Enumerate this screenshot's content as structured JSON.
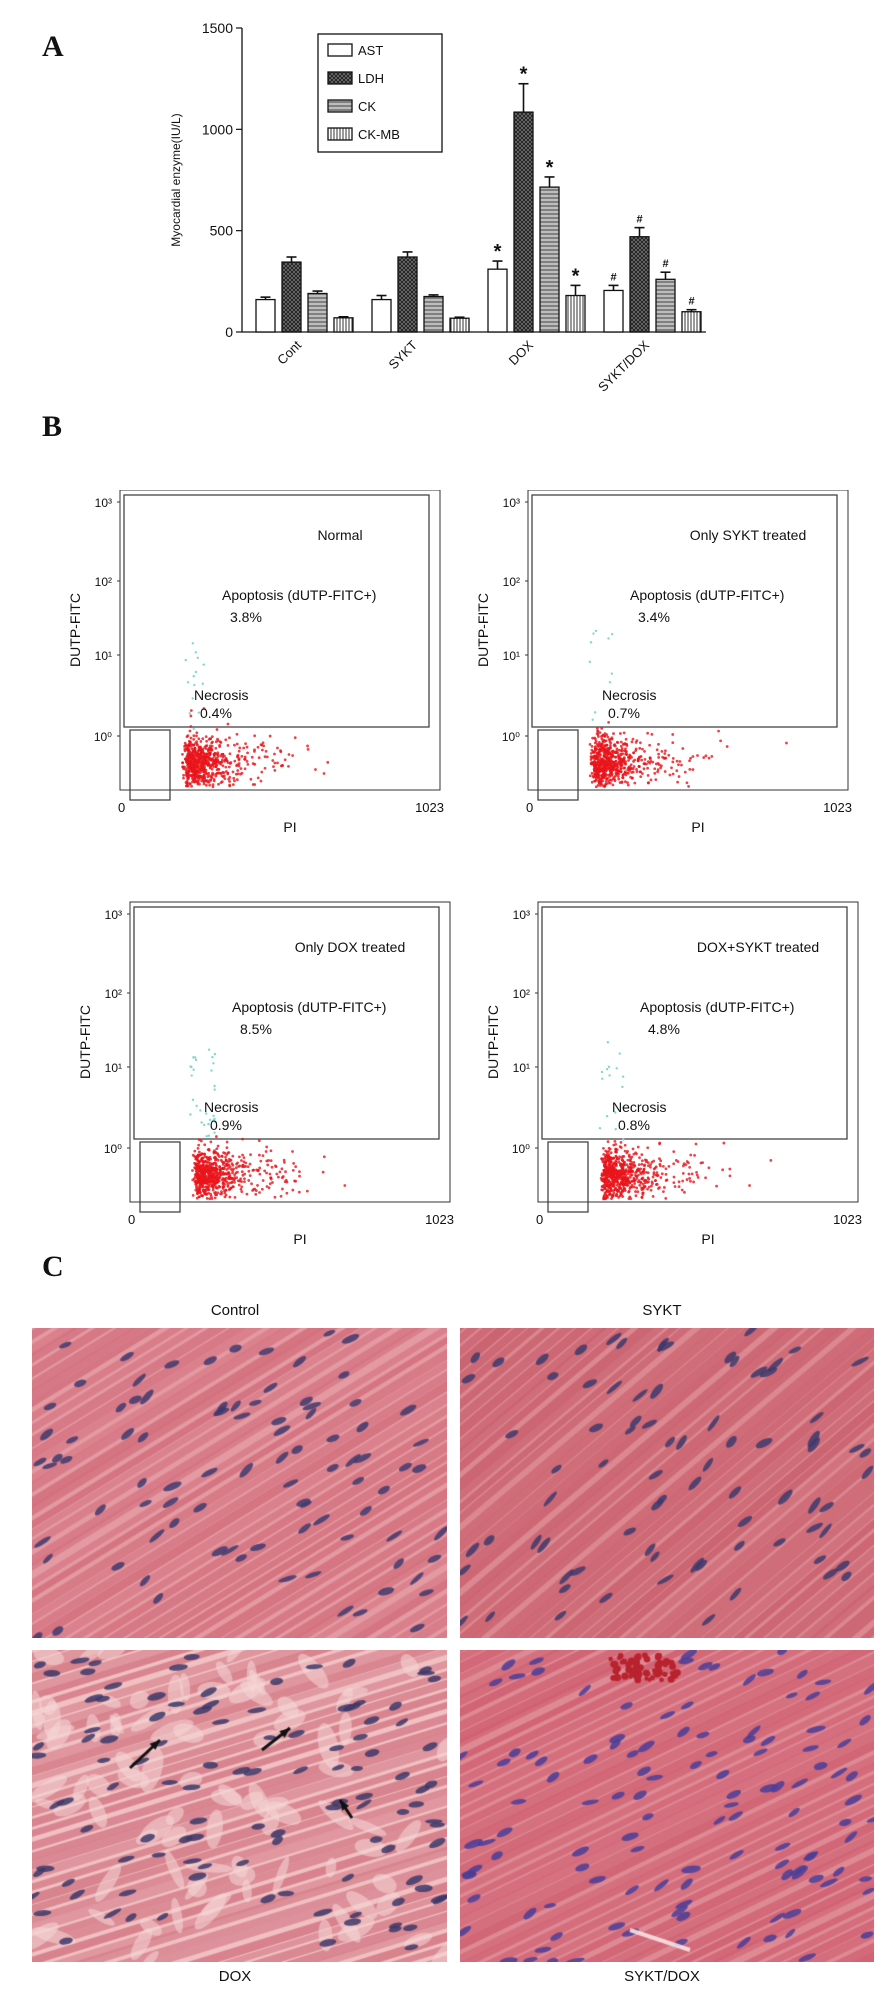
{
  "panels": {
    "a": "A",
    "b": "B",
    "c": "C"
  },
  "chart_data": [
    {
      "type": "bar",
      "ylabel": "Myocardial enzyme(IU/L)",
      "xlabel": "",
      "ylim": [
        0,
        1500
      ],
      "yticks": [
        0,
        500,
        1000,
        1500
      ],
      "categories": [
        "Cont",
        "SYKT",
        "DOX",
        "SYKT/DOX"
      ],
      "series": [
        {
          "name": "AST",
          "values": [
            160,
            160,
            310,
            205
          ],
          "errors": [
            12,
            20,
            40,
            25
          ],
          "marks": [
            "",
            "",
            "*",
            "#"
          ],
          "pattern": "white"
        },
        {
          "name": "LDH",
          "values": [
            345,
            370,
            1085,
            470
          ],
          "errors": [
            25,
            25,
            140,
            45
          ],
          "marks": [
            "",
            "",
            "*",
            "#"
          ],
          "pattern": "crosshatch"
        },
        {
          "name": "CK",
          "values": [
            190,
            175,
            715,
            260
          ],
          "errors": [
            12,
            8,
            50,
            35
          ],
          "marks": [
            "",
            "",
            "*",
            "#"
          ],
          "pattern": "diagonal"
        },
        {
          "name": "CK-MB",
          "values": [
            70,
            68,
            180,
            100
          ],
          "errors": [
            5,
            5,
            50,
            10
          ],
          "marks": [
            "",
            "",
            "*",
            "#"
          ],
          "pattern": "vertical"
        }
      ],
      "legend": "top-left",
      "grid": false
    },
    {
      "type": "scatter",
      "xlabel": "PI",
      "ylabel": "DUTP-FITC",
      "plots": [
        {
          "title": "Normal",
          "apoptosis_label": "Apoptosis (dUTP-FITC+)",
          "apoptosis_pct": "3.8%",
          "necrosis_label": "Necrosis",
          "necrosis_pct": "0.4%",
          "x_ticks": [
            "0",
            "1023"
          ],
          "y_ticks": [
            "10⁰",
            "10¹",
            "10²",
            "10³"
          ]
        },
        {
          "title": "Only SYKT treated",
          "apoptosis_label": "Apoptosis (dUTP-FITC+)",
          "apoptosis_pct": "3.4%",
          "necrosis_label": "Necrosis",
          "necrosis_pct": "0.7%",
          "x_ticks": [
            "0",
            "1023"
          ],
          "y_ticks": [
            "10⁰",
            "10¹",
            "10²",
            "10³"
          ]
        },
        {
          "title": "Only DOX treated",
          "apoptosis_label": "Apoptosis (dUTP-FITC+)",
          "apoptosis_pct": "8.5%",
          "necrosis_label": "Necrosis",
          "necrosis_pct": "0.9%",
          "x_ticks": [
            "0",
            "1023"
          ],
          "y_ticks": [
            "10⁰",
            "10¹",
            "10²",
            "10³"
          ]
        },
        {
          "title": "DOX+SYKT treated",
          "apoptosis_label": "Apoptosis (dUTP-FITC+)",
          "apoptosis_pct": "4.8%",
          "necrosis_label": "Necrosis",
          "necrosis_pct": "0.8%",
          "x_ticks": [
            "0",
            "1023"
          ],
          "y_ticks": [
            "10⁰",
            "10¹",
            "10²",
            "10³"
          ]
        }
      ],
      "colors": {
        "main": "#e8151c",
        "apoptotic": "#7fd8d0"
      }
    }
  ],
  "histology": {
    "titles": [
      "Control",
      "SYKT",
      "DOX",
      "SYKT/DOX"
    ],
    "colors": {
      "tissue": "#d9747f",
      "nuclei": "#4a3f7a",
      "background": "#e9a3a8"
    }
  }
}
